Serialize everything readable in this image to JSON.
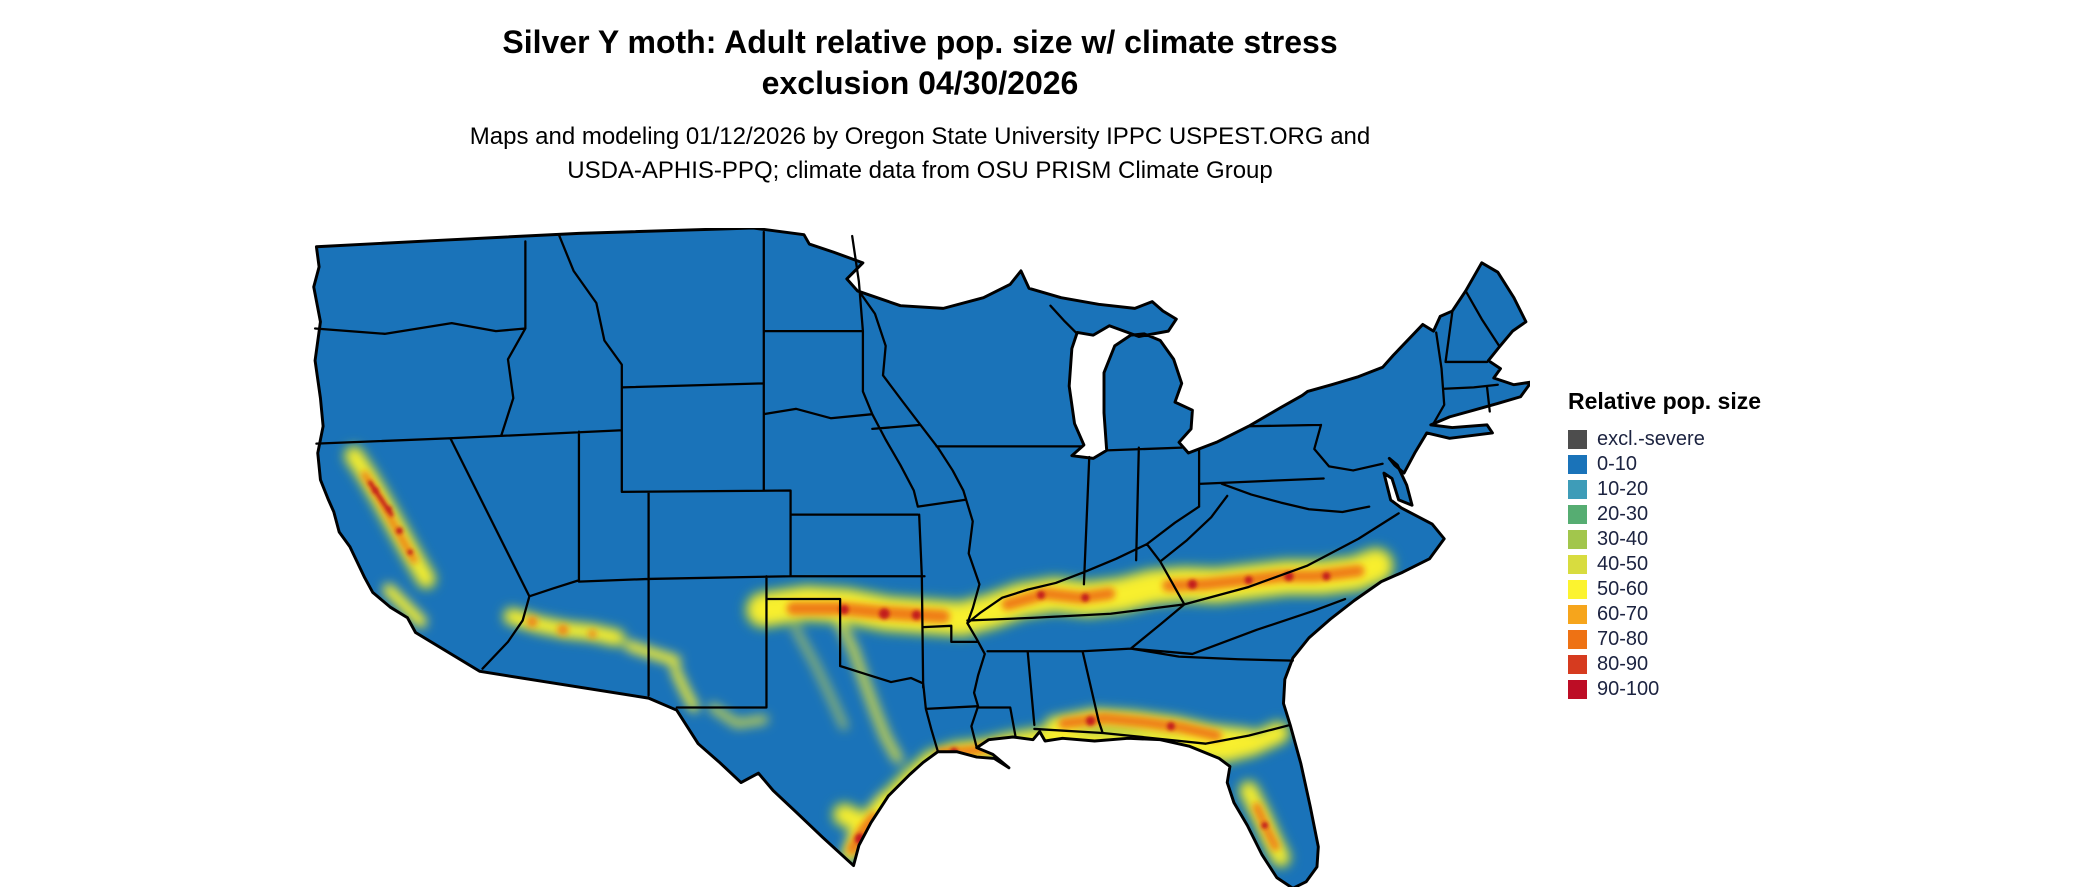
{
  "title": {
    "line1": "Silver Y moth: Adult relative pop. size w/ climate stress",
    "line2": "exclusion 04/30/2026"
  },
  "subtitle": {
    "line1": "Maps and modeling 01/12/2026 by Oregon State University IPPC USPEST.ORG and",
    "line2": "USDA-APHIS-PPQ; climate data from OSU PRISM Climate Group"
  },
  "legend": {
    "title": "Relative pop. size",
    "items": [
      {
        "label": "excl.-severe",
        "color": "#4d4d4d"
      },
      {
        "label": "0-10",
        "color": "#1a73b9"
      },
      {
        "label": "10-20",
        "color": "#3e9cb8"
      },
      {
        "label": "20-30",
        "color": "#56ad72"
      },
      {
        "label": "30-40",
        "color": "#a2c64c"
      },
      {
        "label": "40-50",
        "color": "#d8dc3f"
      },
      {
        "label": "50-60",
        "color": "#fcf32f"
      },
      {
        "label": "60-70",
        "color": "#f6a51c"
      },
      {
        "label": "70-80",
        "color": "#ee7214"
      },
      {
        "label": "80-90",
        "color": "#d63b1f"
      },
      {
        "label": "90-100",
        "color": "#bd0d25"
      }
    ]
  },
  "map": {
    "colors": {
      "land": "#1a73b9",
      "transition_green": "#64b04d",
      "yellow": "#f8ef2d",
      "orange": "#ef7d15",
      "red": "#c21a1f",
      "state_border": "#000000",
      "water": "#ffffff"
    }
  }
}
